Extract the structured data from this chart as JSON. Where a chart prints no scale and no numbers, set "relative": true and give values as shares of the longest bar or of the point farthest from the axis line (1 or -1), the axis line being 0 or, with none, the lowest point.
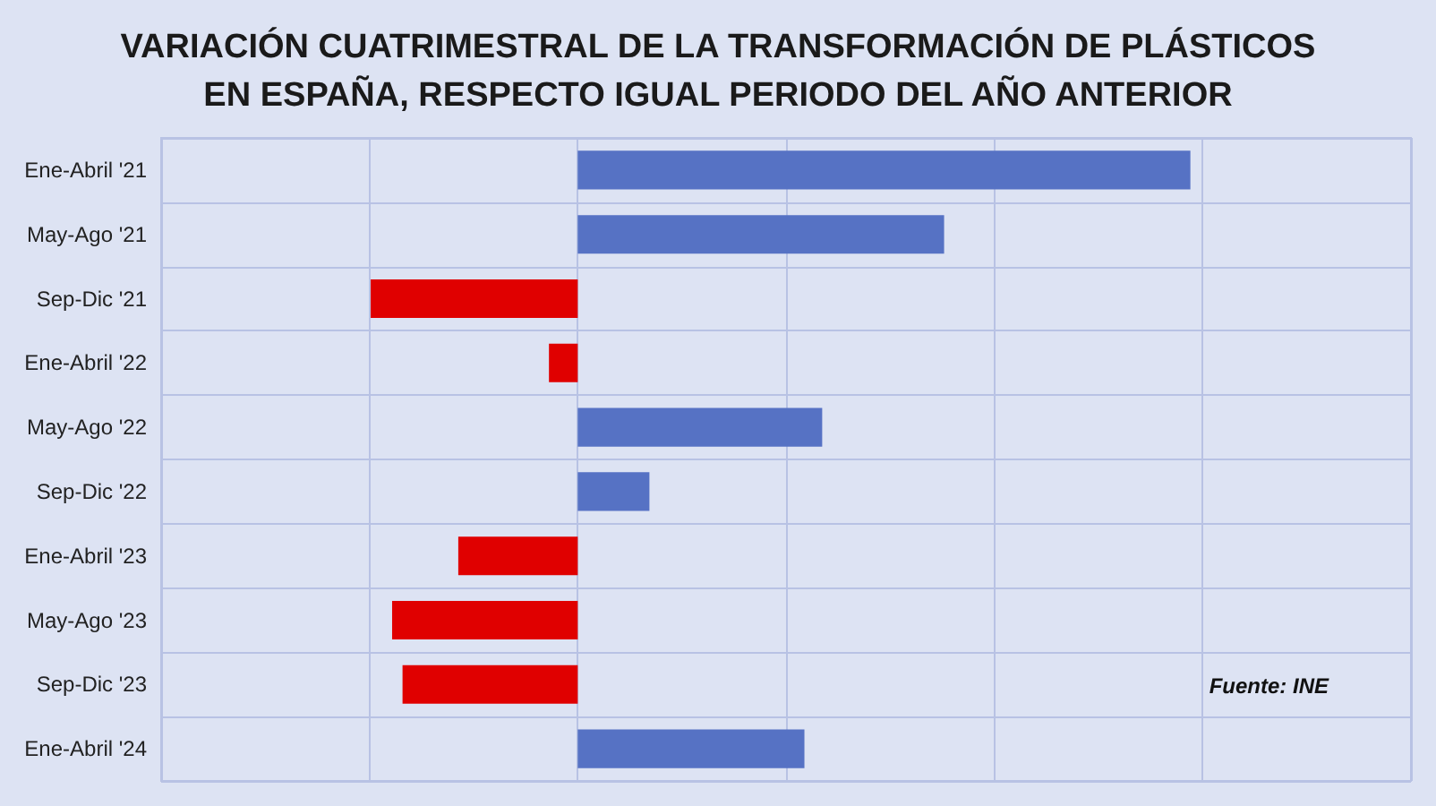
{
  "chart_data": {
    "type": "bar",
    "orientation": "horizontal",
    "relative": true,
    "title": "VARIACIÓN CUATRIMESTRAL DE LA TRANSFORMACIÓN DE PLÁSTICOS\nEN ESPAÑA, RESPECTO IGUAL PERIODO DEL AÑO ANTERIOR",
    "categories": [
      "Ene-Abril '21",
      "May-Ago '21",
      "Sep-Dic '21",
      "Ene-Abril '22",
      "May-Ago '22",
      "Sep-Dic '22",
      "Ene-Abril '23",
      "May-Ago '23",
      "Sep-Dic '23",
      "Ene-Abril '24"
    ],
    "values": [
      1,
      0.598,
      -0.338,
      -0.047,
      0.399,
      0.117,
      -0.195,
      -0.303,
      -0.286,
      0.37
    ],
    "colors": [
      "#5672c4",
      "#5672c4",
      "#e00000",
      "#e00000",
      "#5672c4",
      "#5672c4",
      "#e00000",
      "#e00000",
      "#e00000",
      "#5672c4"
    ],
    "grid": true,
    "annotations": [
      "Fuente: INE"
    ]
  }
}
